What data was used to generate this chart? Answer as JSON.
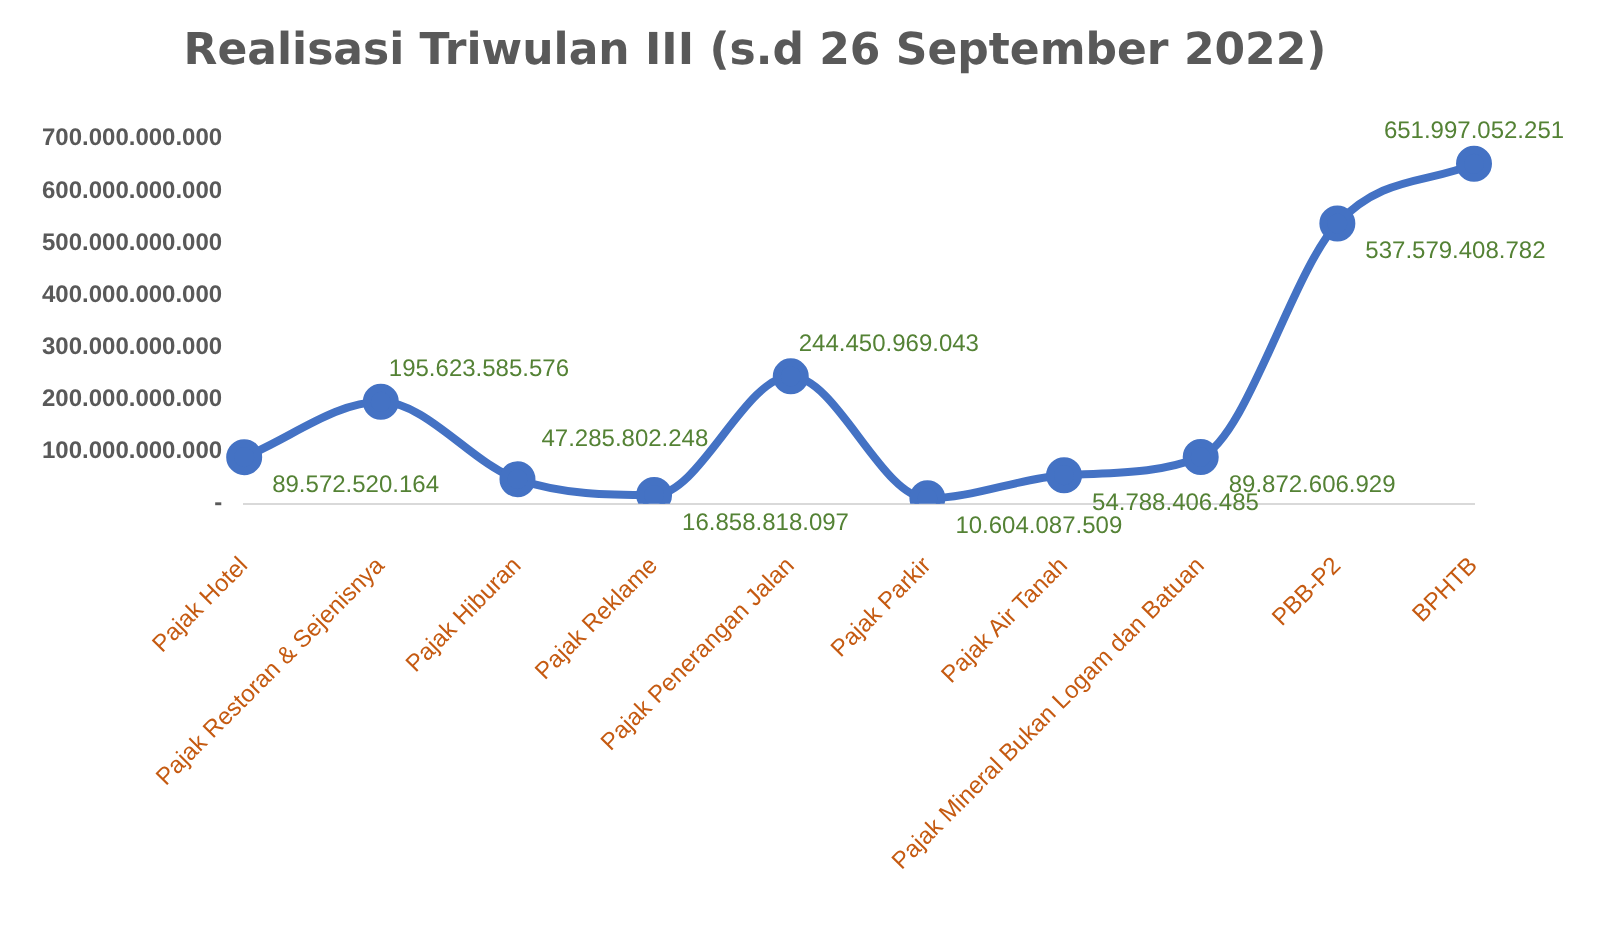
{
  "chart_data": {
    "type": "line",
    "title": "Realisasi Triwulan III (s.d 26 September 2022)",
    "categories": [
      "Pajak Hotel",
      "Pajak Restoran & Sejenisnya",
      "Pajak Hiburan",
      "Pajak Reklame",
      "Pajak Penerangan Jalan",
      "Pajak Parkir",
      "Pajak Air Tanah",
      "Pajak Mineral Bukan Logam dan Batuan",
      "PBB-P2",
      "BPHTB"
    ],
    "series": [
      {
        "color": "#4472c4",
        "values": [
          89572520164,
          195623585576,
          47285802248,
          16858818097,
          244450969043,
          10604087509,
          54788406485,
          89872606929,
          537579408782,
          651997052251
        ],
        "value_labels": [
          "89.572.520.164",
          "195.623.585.576",
          "47.285.802.248",
          "16.858.818.097",
          "244.450.969.043",
          "10.604.087.509",
          "54.788.406.485",
          "89.872.606.929",
          "537.579.408.782",
          "651.997.052.251"
        ]
      }
    ],
    "ylim": [
      0,
      700000000000
    ],
    "yticks": [
      {
        "value": 0,
        "label": "-"
      },
      {
        "value": 100000000000,
        "label": "100.000.000.000"
      },
      {
        "value": 200000000000,
        "label": "200.000.000.000"
      },
      {
        "value": 300000000000,
        "label": "300.000.000.000"
      },
      {
        "value": 400000000000,
        "label": "400.000.000.000"
      },
      {
        "value": 500000000000,
        "label": "500.000.000.000"
      },
      {
        "value": 600000000000,
        "label": "600.000.000.000"
      },
      {
        "value": 700000000000,
        "label": "700.000.000.000"
      }
    ],
    "grid": false,
    "legend": false,
    "marker": "circle",
    "line_style": "solid"
  }
}
